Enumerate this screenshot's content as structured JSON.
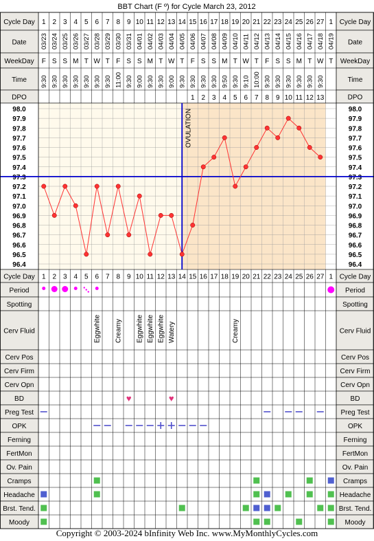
{
  "chart_data": {
    "type": "line",
    "title": "BBT Chart (F º) for Cycle March 23, 2012",
    "x": [
      1,
      2,
      3,
      4,
      5,
      6,
      7,
      8,
      9,
      10,
      11,
      12,
      13,
      14,
      15,
      16,
      17,
      18,
      19,
      20,
      21,
      22,
      23,
      24,
      25,
      26,
      27
    ],
    "dates": [
      "03/23",
      "03/24",
      "03/25",
      "03/26",
      "03/27",
      "03/28",
      "03/29",
      "03/30",
      "03/31",
      "04/01",
      "04/02",
      "04/03",
      "04/04",
      "04/05",
      "04/06",
      "04/07",
      "04/08",
      "04/09",
      "04/10",
      "04/11",
      "04/12",
      "04/13",
      "04/14",
      "04/15",
      "04/16",
      "04/17",
      "04/18",
      "04/19"
    ],
    "weekdays": [
      "F",
      "S",
      "S",
      "M",
      "T",
      "W",
      "T",
      "F",
      "S",
      "S",
      "M",
      "T",
      "W",
      "T",
      "F",
      "S",
      "S",
      "M",
      "T",
      "W",
      "T",
      "F",
      "S",
      "S",
      "M",
      "T",
      "W",
      "T"
    ],
    "times": [
      "9:30",
      "9:30",
      "9:30",
      "9:30",
      "9:30",
      "9:30",
      "9:30",
      "11:00",
      "9:30",
      "9:00",
      "9:30",
      "9:30",
      "9:00",
      "9:30",
      "9:30",
      "9:30",
      "9:30",
      "9:50",
      "9:30",
      "9:10",
      "10:00",
      "9:30",
      "9:30",
      "9:30",
      "9:30",
      "9:30",
      "9:30",
      ""
    ],
    "series": [
      {
        "values": [
          97.2,
          96.9,
          97.2,
          97.0,
          96.5,
          97.2,
          96.7,
          97.2,
          96.7,
          97.1,
          96.5,
          96.9,
          96.9,
          96.5,
          96.8,
          97.4,
          97.5,
          97.7,
          97.2,
          97.4,
          97.6,
          97.8,
          97.7,
          97.9,
          97.8,
          97.6,
          97.5
        ]
      }
    ],
    "y_ticks": [
      "98.0",
      "97.9",
      "97.8",
      "97.7",
      "97.6",
      "97.5",
      "97.4",
      "97.3",
      "97.2",
      "97.1",
      "97.0",
      "96.9",
      "96.8",
      "96.7",
      "96.6",
      "96.5",
      "96.4"
    ],
    "ylim": [
      96.4,
      98.0
    ],
    "coverline": 97.3,
    "ovulation_day": 14,
    "ovulation_label": "OVULATION",
    "dpo": {
      "start_day": 15,
      "labels": [
        "1",
        "2",
        "3",
        "4",
        "5",
        "6",
        "7",
        "8",
        "9",
        "10",
        "11",
        "12",
        "13"
      ]
    },
    "next_cycle_day": "1",
    "header_left": [
      "Cycle Day",
      "Date",
      "WeekDay",
      "Time",
      "DPO"
    ],
    "header_right": [
      "Cycle Day",
      "Date",
      "WeekDay",
      "Time",
      "DPO"
    ],
    "grid": true,
    "period": {
      "label": "Period",
      "days": [
        1,
        2,
        3,
        4,
        5,
        6
      ],
      "intensity": [
        "s",
        "l",
        "l",
        "s",
        "spot",
        "s"
      ],
      "next_cycle": true
    },
    "rows": [
      {
        "label": "Spotting",
        "entries": []
      },
      {
        "label": "Cerv Fluid",
        "entries": [
          {
            "day": 6,
            "text": "Eggwhite"
          },
          {
            "day": 8,
            "text": "Creamy"
          },
          {
            "day": 10,
            "text": "Eggwhite"
          },
          {
            "day": 11,
            "text": "Eggwhite"
          },
          {
            "day": 12,
            "text": "Eggwhite"
          },
          {
            "day": 13,
            "text": "Watery"
          },
          {
            "day": 19,
            "text": "Creamy"
          }
        ]
      },
      {
        "label": "Cerv Pos",
        "entries": []
      },
      {
        "label": "Cerv Firm",
        "entries": []
      },
      {
        "label": "Cerv Opn",
        "entries": []
      },
      {
        "label": "BD",
        "hearts": [
          9,
          13
        ]
      },
      {
        "label": "Preg Test",
        "dashes": [
          1,
          22,
          24,
          25,
          27
        ]
      },
      {
        "label": "OPK",
        "dashes": [
          6,
          7,
          9,
          10,
          11,
          14,
          15,
          16
        ],
        "plus": [
          12,
          13
        ]
      },
      {
        "label": "Ferning",
        "entries": []
      },
      {
        "label": "FertMon",
        "entries": []
      },
      {
        "label": "Ov. Pain",
        "entries": []
      },
      {
        "label": "Cramps",
        "green": [
          6,
          21,
          26
        ],
        "blue_next": true
      },
      {
        "label": "Headache",
        "green": [
          6,
          21,
          24,
          26
        ],
        "blue": [
          1,
          22
        ],
        "green_next": true
      },
      {
        "label": "Brst. Tend.",
        "green": [
          1,
          14,
          20,
          23,
          27
        ],
        "blue": [
          21,
          22
        ],
        "green_next": true
      },
      {
        "label": "Moody",
        "green": [
          1,
          21,
          22,
          25
        ],
        "green_next": true
      }
    ],
    "colors": {
      "line": "#ff3333",
      "coverline": "#0000cc",
      "ovulation": "#0000cc",
      "pre_ovulation_bg": "#fffaec",
      "post_ovulation_bg": "#fbe5c8",
      "header_bg": "#ebe9e4",
      "period": "#ff00ff",
      "heart": "#e0337a",
      "opk": "#5050cc",
      "green": "#50c050",
      "blue": "#5060d0"
    }
  },
  "footer": "Copyright © 2003-2024 bInfinity Web Inc.     www.MyMonthlyCycles.com"
}
